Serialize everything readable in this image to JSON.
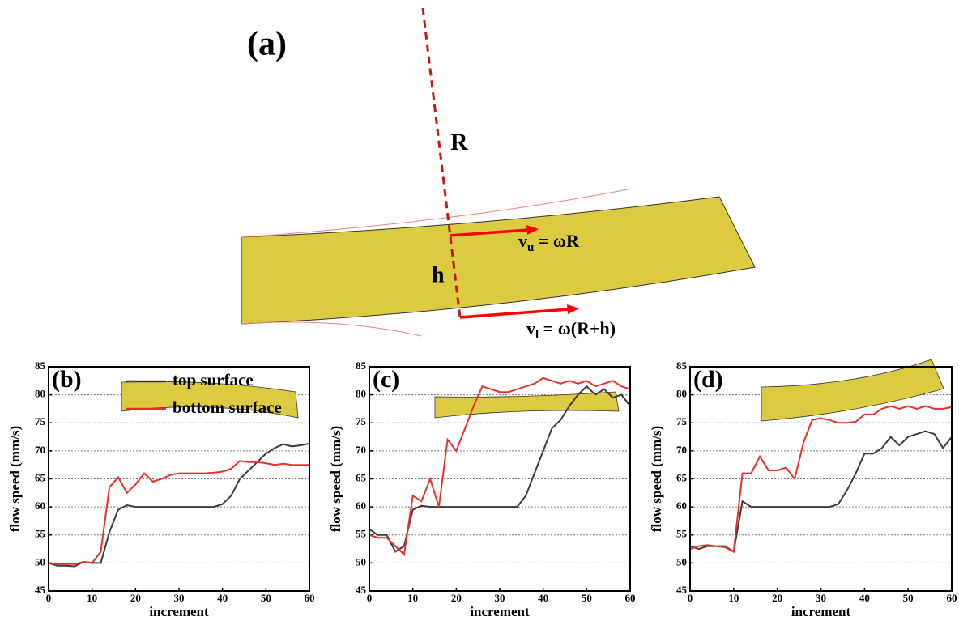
{
  "diagram": {
    "panel_label": "(a)",
    "radius_label": "R",
    "thickness_label": "h",
    "upper_velocity": {
      "base": "v",
      "sub": "u",
      "rest": " = ωR"
    },
    "lower_velocity": {
      "base": "v",
      "sub": "l",
      "rest": " = ω(R+h)"
    }
  },
  "chart_data": [
    {
      "type": "line",
      "title": "(b)",
      "xlabel": "increment",
      "ylabel": "flow speed (mm/s)",
      "xlim": [
        0,
        60
      ],
      "xticks": [
        0,
        10,
        20,
        30,
        40,
        50,
        60
      ],
      "ylim": [
        45,
        85
      ],
      "yticks": [
        45,
        50,
        55,
        60,
        65,
        70,
        75,
        80,
        85
      ],
      "grid": true,
      "legend": "top",
      "x": [
        0,
        2,
        4,
        6,
        8,
        10,
        12,
        14,
        16,
        18,
        20,
        22,
        24,
        26,
        28,
        30,
        32,
        34,
        36,
        38,
        40,
        42,
        44,
        46,
        48,
        50,
        52,
        54,
        56,
        58,
        60
      ],
      "series": [
        {
          "name": "top surface",
          "color": "#3c3c3c",
          "values": [
            50,
            49.5,
            49.5,
            49.4,
            50.2,
            50,
            50,
            55.5,
            59.5,
            60.3,
            60,
            60,
            60,
            60,
            60,
            60,
            60,
            60,
            60,
            60,
            60.5,
            62,
            65,
            66.5,
            68,
            69.5,
            70.5,
            71.2,
            70.8,
            71,
            71.3
          ]
        },
        {
          "name": "bottom surface",
          "color": "#e8312f",
          "values": [
            50,
            49.8,
            49.8,
            49.8,
            50.2,
            50,
            52,
            63.5,
            65.3,
            62.5,
            64,
            66,
            64.5,
            65,
            65.7,
            66,
            66,
            66,
            66,
            66.1,
            66.3,
            66.8,
            68.2,
            68,
            68,
            67.8,
            67.5,
            67.7,
            67.5,
            67.5,
            67.5
          ]
        }
      ]
    },
    {
      "type": "line",
      "title": "(c)",
      "xlabel": "increment",
      "ylabel": "flow speed (mm/s)",
      "xlim": [
        0,
        60
      ],
      "xticks": [
        0,
        10,
        20,
        30,
        40,
        50,
        60
      ],
      "ylim": [
        45,
        85
      ],
      "yticks": [
        45,
        50,
        55,
        60,
        65,
        70,
        75,
        80,
        85
      ],
      "grid": true,
      "x": [
        0,
        2,
        4,
        6,
        8,
        10,
        12,
        14,
        16,
        18,
        20,
        22,
        24,
        26,
        28,
        30,
        32,
        34,
        36,
        38,
        40,
        42,
        44,
        46,
        48,
        50,
        52,
        54,
        56,
        58,
        60
      ],
      "series": [
        {
          "color": "#3c3c3c",
          "values": [
            56,
            55,
            55,
            52,
            53,
            59.5,
            60.2,
            60,
            60,
            60,
            60,
            60,
            60,
            60,
            60,
            60,
            60,
            60,
            62,
            66,
            70,
            74,
            75.5,
            78,
            80,
            81.5,
            80,
            81,
            79.5,
            80,
            78
          ]
        },
        {
          "color": "#e8312f",
          "values": [
            55,
            54.5,
            54.5,
            53,
            51.5,
            62,
            61,
            65,
            60,
            72,
            70,
            74,
            78,
            81.5,
            81,
            80.5,
            80.5,
            81,
            81.5,
            82,
            83,
            82.5,
            82,
            82.5,
            82,
            82.5,
            81.5,
            82,
            82.5,
            81.5,
            81
          ]
        }
      ]
    },
    {
      "type": "line",
      "title": "(d)",
      "xlabel": "increment",
      "ylabel": "flow speed (mm/s)",
      "xlim": [
        0,
        60
      ],
      "xticks": [
        0,
        10,
        20,
        30,
        40,
        50,
        60
      ],
      "ylim": [
        45,
        85
      ],
      "yticks": [
        45,
        50,
        55,
        60,
        65,
        70,
        75,
        80,
        85
      ],
      "grid": true,
      "x": [
        0,
        2,
        4,
        6,
        8,
        10,
        12,
        14,
        16,
        18,
        20,
        22,
        24,
        26,
        28,
        30,
        32,
        34,
        36,
        38,
        40,
        42,
        44,
        46,
        48,
        50,
        52,
        54,
        56,
        58,
        60
      ],
      "series": [
        {
          "color": "#3c3c3c",
          "values": [
            53,
            52.5,
            53,
            53,
            53,
            52,
            61,
            60,
            60,
            60,
            60,
            60,
            60,
            60,
            60,
            60,
            60,
            60.5,
            63,
            66,
            69.5,
            69.5,
            70.5,
            72.5,
            71,
            72.5,
            73,
            73.5,
            73,
            70.5,
            72.5
          ]
        },
        {
          "color": "#e8312f",
          "values": [
            52.5,
            53,
            53.2,
            53,
            52.8,
            52,
            66,
            66,
            69,
            66.5,
            66.5,
            67,
            65,
            71.5,
            75.5,
            75.8,
            75.5,
            75,
            75,
            75.2,
            76.5,
            76.5,
            77.5,
            78,
            77.5,
            78,
            77.5,
            78,
            77.5,
            77.5,
            77.8
          ]
        }
      ]
    }
  ]
}
